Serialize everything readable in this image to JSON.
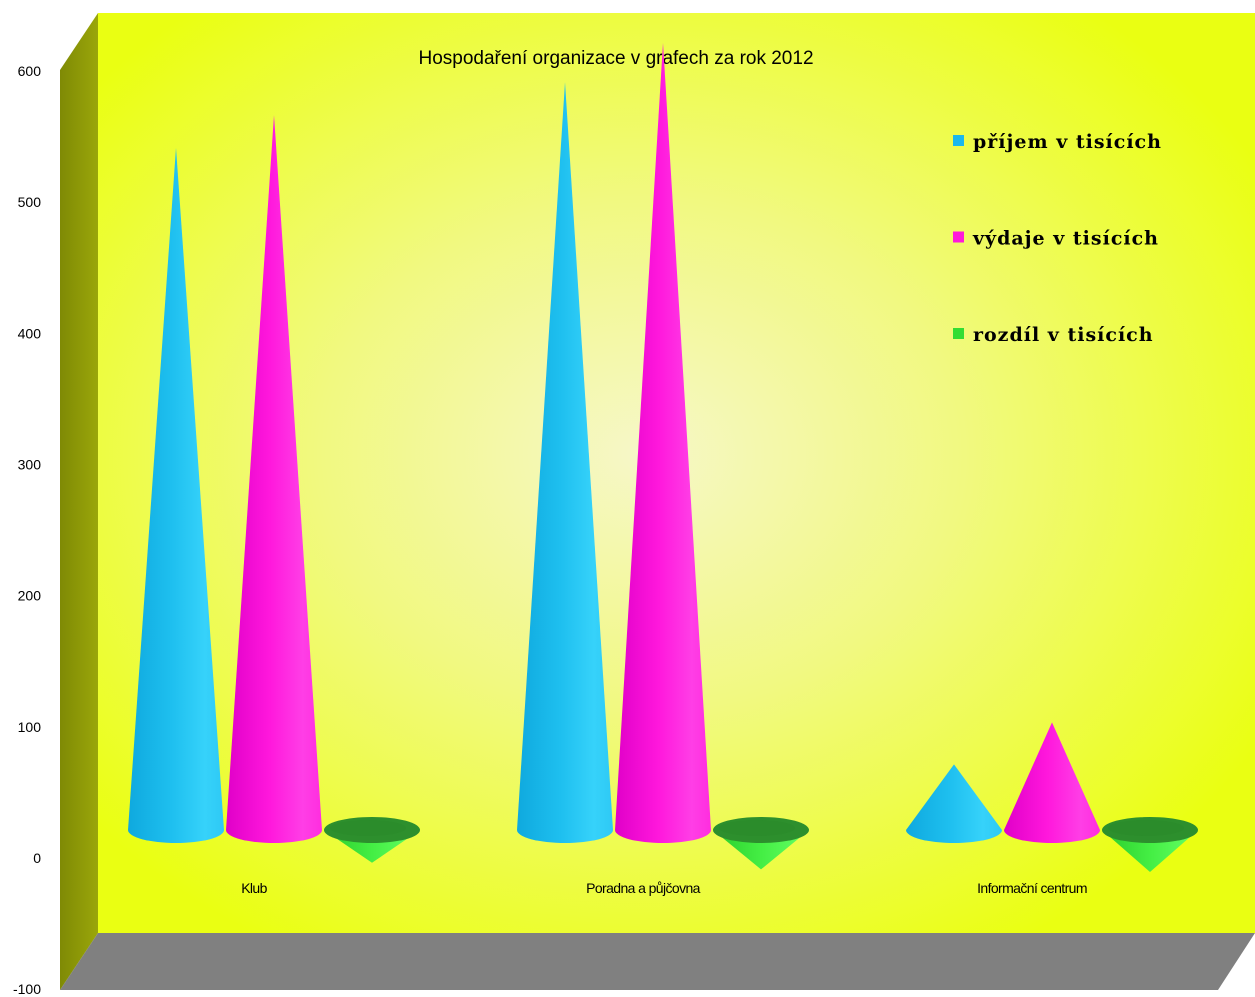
{
  "chart_data": {
    "type": "bar",
    "title": "Hospodaření organizace v grafech za rok 2012",
    "categories": [
      "Klub",
      "Poradna a půjčovna",
      "Informační centrum"
    ],
    "series": [
      {
        "name": "příjem v tisících",
        "color": "#1ab8ee",
        "values": [
          520,
          570,
          50
        ]
      },
      {
        "name": "výdaje v tisících",
        "color": "#ff1ad9",
        "values": [
          545,
          600,
          82
        ]
      },
      {
        "name": "rozdíl v tisících",
        "color": "#33dd33",
        "values": [
          -25,
          -30,
          -32
        ]
      }
    ],
    "ylim": [
      -100,
      600
    ],
    "yticks": [
      600,
      500,
      400,
      300,
      200,
      100,
      0,
      -100
    ],
    "legend_position": "top-right",
    "colors": {
      "wall": "#eaff12",
      "wall_glow": "#f5f8b8",
      "side_wall": "#8f9a05",
      "floor": "#808080"
    }
  }
}
